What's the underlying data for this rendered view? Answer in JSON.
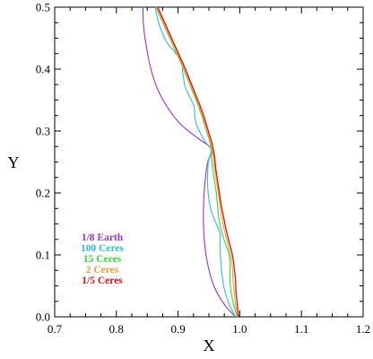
{
  "chart_data": {
    "type": "line",
    "xlabel": "X",
    "ylabel": "Y",
    "xlim": [
      0.7,
      1.2
    ],
    "ylim": [
      0.0,
      0.5
    ],
    "x_ticks": [
      "0.7",
      "0.8",
      "0.9",
      "1.0",
      "1.1",
      "1.2"
    ],
    "y_ticks": [
      "0.0",
      "0.1",
      "0.2",
      "0.3",
      "0.4",
      "0.5"
    ],
    "grid": false,
    "legend_position": "left-middle",
    "series": [
      {
        "name": "1/8 Earth",
        "color": "#9933cc",
        "points": [
          [
            0.993,
            0.0
          ],
          [
            0.975,
            0.02
          ],
          [
            0.958,
            0.05
          ],
          [
            0.947,
            0.09
          ],
          [
            0.942,
            0.13
          ],
          [
            0.941,
            0.17
          ],
          [
            0.943,
            0.21
          ],
          [
            0.948,
            0.25
          ],
          [
            0.955,
            0.27
          ],
          [
            0.93,
            0.29
          ],
          [
            0.905,
            0.31
          ],
          [
            0.885,
            0.335
          ],
          [
            0.868,
            0.365
          ],
          [
            0.856,
            0.4
          ],
          [
            0.848,
            0.44
          ],
          [
            0.844,
            0.47
          ],
          [
            0.843,
            0.5
          ]
        ]
      },
      {
        "name": "100 Ceres",
        "color": "#33bbdd",
        "points": [
          [
            0.993,
            0.0
          ],
          [
            0.983,
            0.02
          ],
          [
            0.975,
            0.045
          ],
          [
            0.971,
            0.07
          ],
          [
            0.969,
            0.095
          ],
          [
            0.968,
            0.115
          ],
          [
            0.968,
            0.135
          ],
          [
            0.962,
            0.15
          ],
          [
            0.954,
            0.17
          ],
          [
            0.95,
            0.19
          ],
          [
            0.948,
            0.21
          ],
          [
            0.948,
            0.23
          ],
          [
            0.949,
            0.25
          ],
          [
            0.954,
            0.27
          ],
          [
            0.946,
            0.28
          ],
          [
            0.937,
            0.295
          ],
          [
            0.93,
            0.31
          ],
          [
            0.927,
            0.325
          ],
          [
            0.926,
            0.34
          ],
          [
            0.919,
            0.355
          ],
          [
            0.912,
            0.37
          ],
          [
            0.909,
            0.385
          ],
          [
            0.907,
            0.4
          ],
          [
            0.908,
            0.41
          ],
          [
            0.897,
            0.425
          ],
          [
            0.884,
            0.44
          ],
          [
            0.876,
            0.455
          ],
          [
            0.87,
            0.47
          ],
          [
            0.866,
            0.485
          ],
          [
            0.863,
            0.5
          ]
        ]
      },
      {
        "name": "15 Ceres",
        "color": "#33dd33",
        "points": [
          [
            0.996,
            0.0
          ],
          [
            0.99,
            0.02
          ],
          [
            0.986,
            0.04
          ],
          [
            0.984,
            0.06
          ],
          [
            0.984,
            0.08
          ],
          [
            0.983,
            0.1
          ],
          [
            0.976,
            0.12
          ],
          [
            0.97,
            0.14
          ],
          [
            0.966,
            0.16
          ],
          [
            0.964,
            0.18
          ],
          [
            0.962,
            0.2
          ],
          [
            0.959,
            0.22
          ],
          [
            0.956,
            0.24
          ],
          [
            0.954,
            0.26
          ],
          [
            0.952,
            0.28
          ],
          [
            0.946,
            0.3
          ],
          [
            0.94,
            0.32
          ],
          [
            0.933,
            0.34
          ],
          [
            0.925,
            0.36
          ],
          [
            0.917,
            0.38
          ],
          [
            0.909,
            0.4
          ],
          [
            0.9,
            0.42
          ],
          [
            0.891,
            0.44
          ],
          [
            0.882,
            0.46
          ],
          [
            0.873,
            0.48
          ],
          [
            0.864,
            0.5
          ]
        ]
      },
      {
        "name": "2 Ceres",
        "color": "#ff9933",
        "points": [
          [
            0.997,
            0.0
          ],
          [
            0.993,
            0.02
          ],
          [
            0.991,
            0.04
          ],
          [
            0.989,
            0.06
          ],
          [
            0.988,
            0.08
          ],
          [
            0.985,
            0.1
          ],
          [
            0.98,
            0.12
          ],
          [
            0.975,
            0.14
          ],
          [
            0.971,
            0.16
          ],
          [
            0.968,
            0.18
          ],
          [
            0.965,
            0.2
          ],
          [
            0.962,
            0.22
          ],
          [
            0.959,
            0.24
          ],
          [
            0.957,
            0.26
          ],
          [
            0.953,
            0.28
          ],
          [
            0.947,
            0.3
          ],
          [
            0.941,
            0.32
          ],
          [
            0.934,
            0.34
          ],
          [
            0.926,
            0.36
          ],
          [
            0.918,
            0.38
          ],
          [
            0.91,
            0.4
          ],
          [
            0.901,
            0.42
          ],
          [
            0.892,
            0.44
          ],
          [
            0.883,
            0.46
          ],
          [
            0.874,
            0.48
          ],
          [
            0.865,
            0.5
          ]
        ]
      },
      {
        "name": "1/5 Ceres",
        "color": "#dd1111",
        "points": [
          [
            0.998,
            0.0
          ],
          [
            0.996,
            0.02
          ],
          [
            0.994,
            0.04
          ],
          [
            0.993,
            0.06
          ],
          [
            0.991,
            0.08
          ],
          [
            0.988,
            0.1
          ],
          [
            0.983,
            0.12
          ],
          [
            0.978,
            0.14
          ],
          [
            0.974,
            0.16
          ],
          [
            0.97,
            0.18
          ],
          [
            0.967,
            0.2
          ],
          [
            0.964,
            0.22
          ],
          [
            0.961,
            0.24
          ],
          [
            0.959,
            0.26
          ],
          [
            0.955,
            0.28
          ],
          [
            0.949,
            0.3
          ],
          [
            0.943,
            0.32
          ],
          [
            0.936,
            0.34
          ],
          [
            0.928,
            0.36
          ],
          [
            0.92,
            0.38
          ],
          [
            0.912,
            0.4
          ],
          [
            0.903,
            0.42
          ],
          [
            0.894,
            0.44
          ],
          [
            0.885,
            0.46
          ],
          [
            0.876,
            0.48
          ],
          [
            0.867,
            0.5
          ]
        ]
      }
    ]
  }
}
